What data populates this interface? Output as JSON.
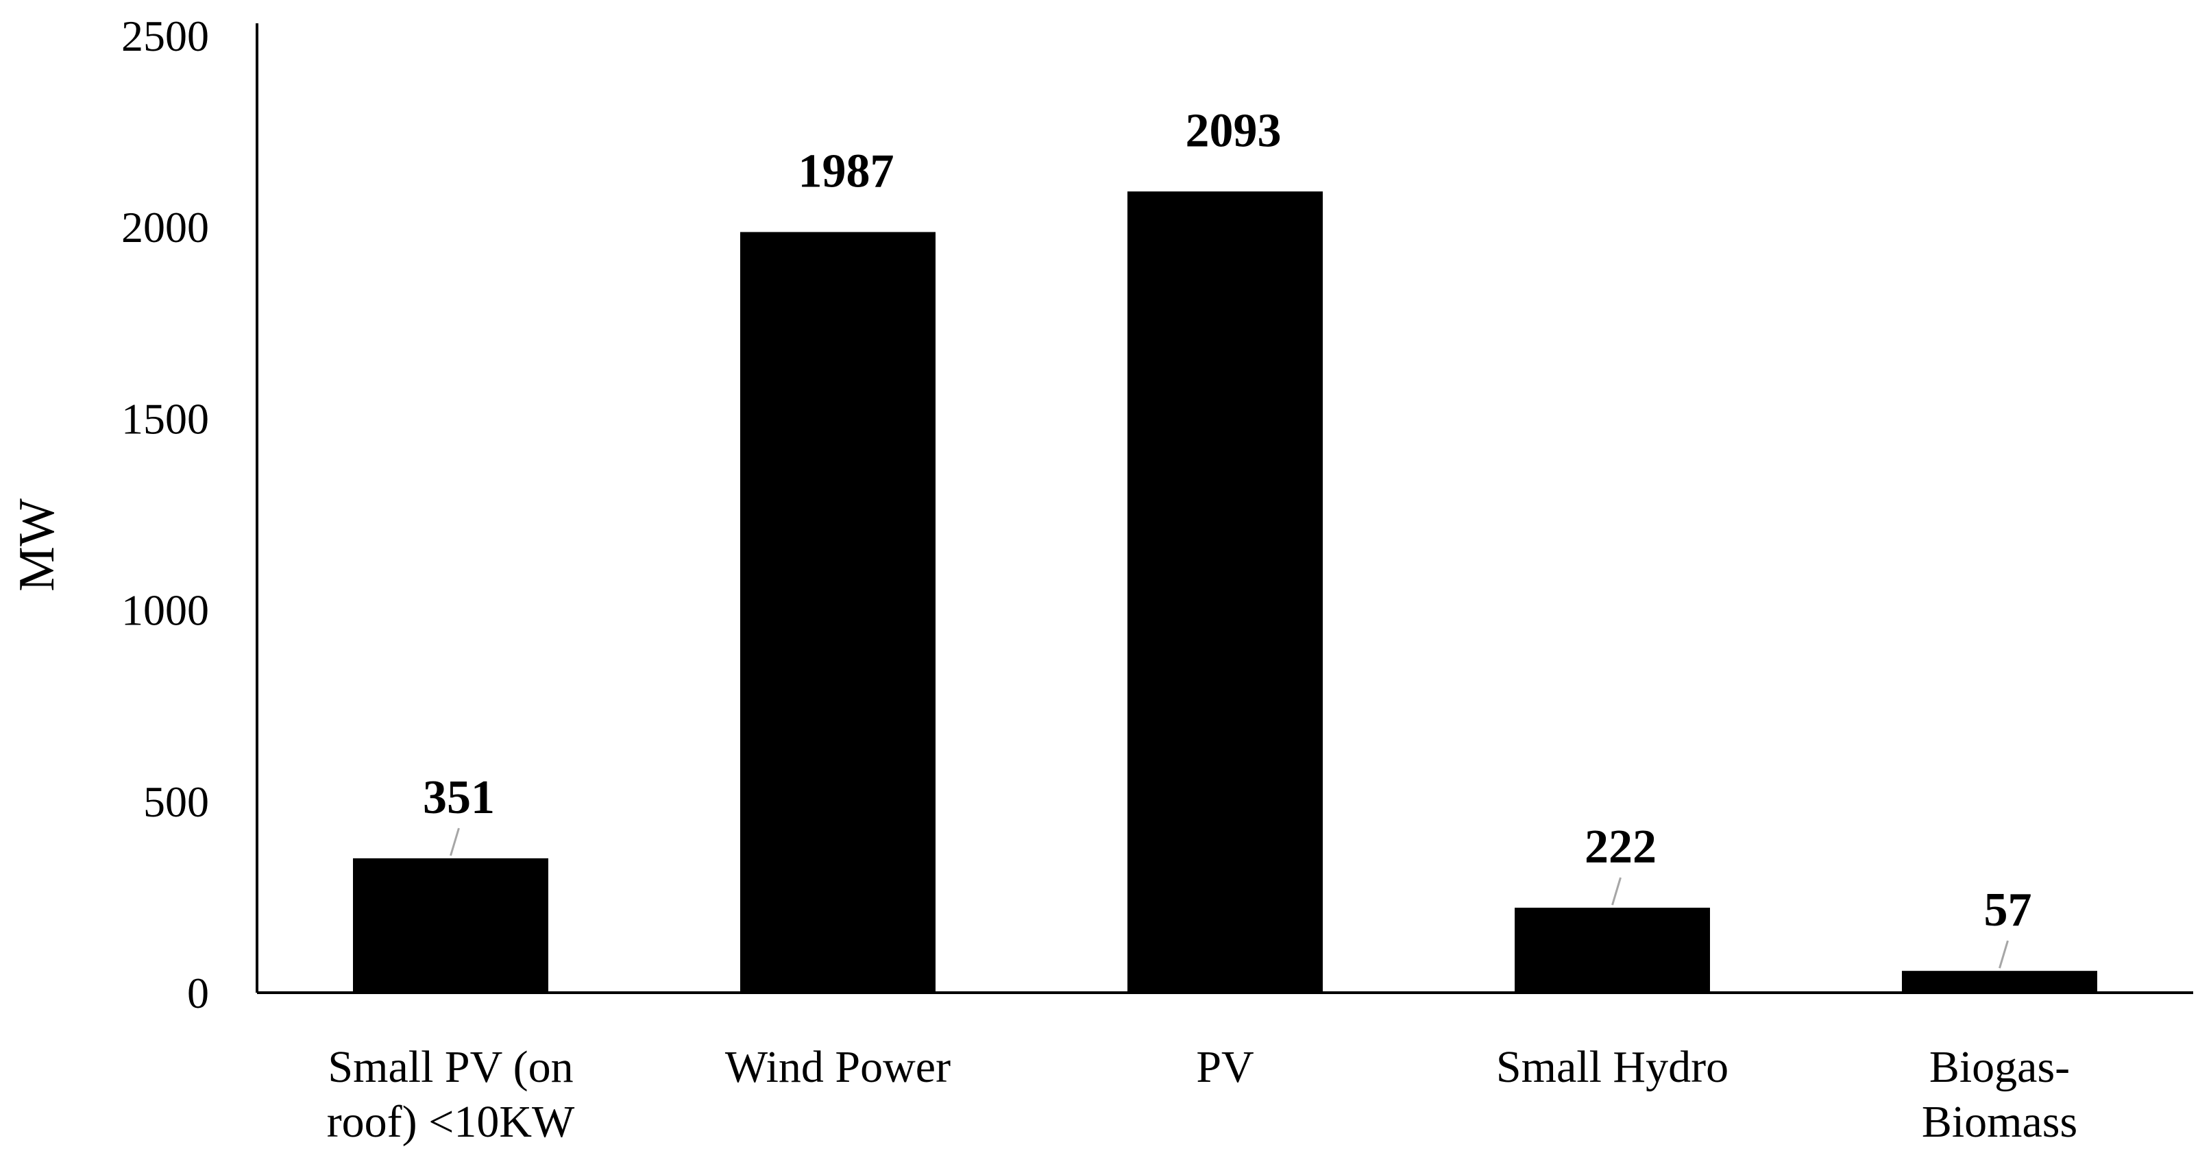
{
  "chart_data": {
    "type": "bar",
    "title": "",
    "xlabel": "",
    "ylabel": "MW",
    "ylim": [
      0,
      2500
    ],
    "yticks": [
      "0",
      "500",
      "1000",
      "1500",
      "2000",
      "2500"
    ],
    "categories": [
      [
        "Small PV (on",
        "roof) <10KW"
      ],
      [
        "Wind Power"
      ],
      [
        "PV"
      ],
      [
        "Small Hydro"
      ],
      [
        "Biogas-",
        "Biomass"
      ]
    ],
    "values": [
      351,
      1987,
      2093,
      222,
      57
    ],
    "data_labels": [
      "351",
      "1987",
      "2093",
      "222",
      "57"
    ],
    "grid": false,
    "legend": "none",
    "bar_color": "#000000",
    "leader_line_color": "#a6a6a6"
  }
}
